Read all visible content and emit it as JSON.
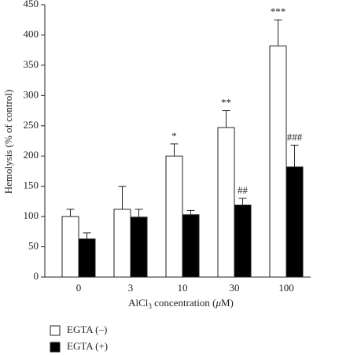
{
  "chart_data": {
    "type": "bar",
    "categories": [
      "0",
      "3",
      "10",
      "30",
      "100"
    ],
    "xlabel": [
      "AlCl",
      "3",
      " concentration (",
      "μ",
      "M)"
    ],
    "ylabel": "Hemolysis (% of control)",
    "ylim": [
      0,
      450
    ],
    "yticks": [
      0,
      50,
      100,
      150,
      200,
      250,
      300,
      350,
      400,
      450
    ],
    "series": [
      {
        "name": "EGTA (–)",
        "color": "#ffffff",
        "values": [
          100,
          112,
          200,
          247,
          382
        ],
        "errors": [
          12,
          38,
          20,
          28,
          43
        ],
        "annotations": [
          null,
          null,
          "*",
          "**",
          "***"
        ]
      },
      {
        "name": "EGTA (+)",
        "color": "#000000",
        "values": [
          63,
          99,
          103,
          119,
          182
        ],
        "errors": [
          10,
          13,
          7,
          11,
          36
        ],
        "annotations": [
          null,
          null,
          null,
          "##",
          "###"
        ]
      }
    ]
  }
}
